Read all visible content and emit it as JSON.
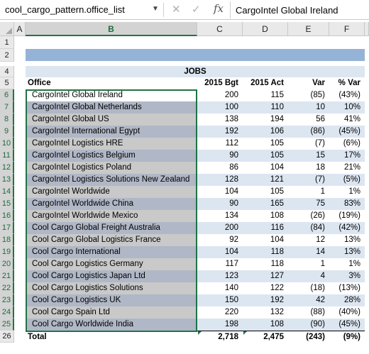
{
  "formula_bar": {
    "name_box": "cool_cargo_pattern.office_list",
    "cancel_glyph": "✕",
    "enter_glyph": "✓",
    "fx_label": "fx",
    "value": "CargoIntel Global Ireland"
  },
  "columns": [
    "A",
    "B",
    "C",
    "D",
    "E",
    "F"
  ],
  "row_numbers": [
    "1",
    "2",
    "4",
    "5",
    "6",
    "7",
    "8",
    "9",
    "10",
    "11",
    "12",
    "13",
    "14",
    "15",
    "16",
    "17",
    "18",
    "19",
    "20",
    "21",
    "22",
    "23",
    "24",
    "25",
    "26"
  ],
  "table": {
    "section_title": "JOBS",
    "headers": [
      "Office",
      "2015 Bgt",
      "2015 Act",
      "Var",
      "% Var"
    ],
    "rows": [
      [
        "CargoIntel Global Ireland",
        "200",
        "115",
        "(85)",
        "(43%)"
      ],
      [
        "CargoIntel Global Netherlands",
        "100",
        "110",
        "10",
        "10%"
      ],
      [
        "CargoIntel Global US",
        "138",
        "194",
        "56",
        "41%"
      ],
      [
        "CargoIntel International Egypt",
        "192",
        "106",
        "(86)",
        "(45%)"
      ],
      [
        "CargoIntel Logistics HRE",
        "112",
        "105",
        "(7)",
        "(6%)"
      ],
      [
        "CargoIntel Logistics Belgium",
        "90",
        "105",
        "15",
        "17%"
      ],
      [
        "CargoIntel Logistics Poland",
        "86",
        "104",
        "18",
        "21%"
      ],
      [
        "CargoIntel Logistics Solutions New Zealand",
        "128",
        "121",
        "(7)",
        "(5%)"
      ],
      [
        "CargoIntel Worldwide",
        "104",
        "105",
        "1",
        "1%"
      ],
      [
        "CargoIntel Worldwide China",
        "90",
        "165",
        "75",
        "83%"
      ],
      [
        "CargoIntel Worldwide Mexico",
        "134",
        "108",
        "(26)",
        "(19%)"
      ],
      [
        "Cool Cargo Global Freight Australia",
        "200",
        "116",
        "(84)",
        "(42%)"
      ],
      [
        "Cool Cargo Global Logistics France",
        "92",
        "104",
        "12",
        "13%"
      ],
      [
        "Cool Cargo International",
        "104",
        "118",
        "14",
        "13%"
      ],
      [
        "Cool Cargo Logistics Germany",
        "117",
        "118",
        "1",
        "1%"
      ],
      [
        "Cool Cargo Logistics Japan Ltd",
        "123",
        "127",
        "4",
        "3%"
      ],
      [
        "Cool Cargo Logistics Solutions",
        "140",
        "122",
        "(18)",
        "(13%)"
      ],
      [
        "Cool Cargo Logistics UK",
        "150",
        "192",
        "42",
        "28%"
      ],
      [
        "Cool Cargo Spain Ltd",
        "220",
        "132",
        "(88)",
        "(40%)"
      ],
      [
        "Cool Cargo Worldwide India",
        "198",
        "108",
        "(90)",
        "(45%)"
      ]
    ],
    "total": [
      "Total",
      "2,718",
      "2,475",
      "(243)",
      "(9%)"
    ]
  },
  "colors": {
    "selection_green": "#217346",
    "title_band": "#95b3d7",
    "row_band_blue": "#dce6f1",
    "selected_fill_dark": "#b0b7c6",
    "selected_fill_light": "#c9c9c9"
  }
}
